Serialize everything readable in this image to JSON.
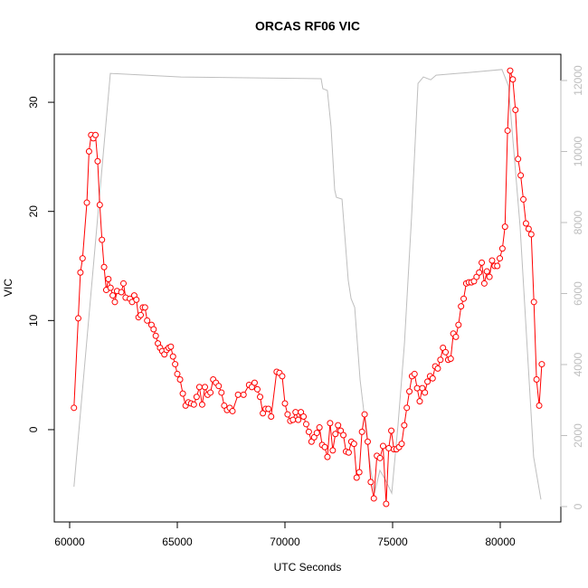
{
  "chart_data": {
    "type": "line",
    "title": "ORCAS RF06 VIC",
    "xlabel": "UTC Seconds",
    "ylabel": "VIC",
    "xlim": [
      59286,
      82815
    ],
    "xticks": [
      60000,
      65000,
      70000,
      75000,
      80000
    ],
    "ylim": [
      -8.46,
      34.4
    ],
    "yticks": [
      0,
      10,
      20,
      30
    ],
    "y2lim": [
      -433,
      12739
    ],
    "y2ticks": [
      0,
      2000,
      4000,
      6000,
      8000,
      10000,
      12000
    ],
    "series": [
      {
        "color": "#ff0000",
        "markers": true,
        "x": [
          60200,
          60400,
          60500,
          60600,
          60800,
          60900,
          61000,
          61100,
          61200,
          61300,
          61400,
          61500,
          61600,
          61700,
          61800,
          61900,
          62000,
          62100,
          62200,
          62400,
          62500,
          62600,
          62800,
          62900,
          63000,
          63100,
          63200,
          63300,
          63400,
          63500,
          63600,
          63800,
          63900,
          64000,
          64100,
          64200,
          64300,
          64400,
          64500,
          64600,
          64700,
          64800,
          64900,
          65000,
          65128,
          65256,
          65385,
          65513,
          65641,
          65769,
          65897,
          66026,
          66154,
          66282,
          66410,
          66538,
          66667,
          66795,
          66923,
          67051,
          67179,
          67308,
          67436,
          67564,
          67821,
          68077,
          68333,
          68462,
          68590,
          68718,
          68846,
          68974,
          69103,
          69231,
          69359,
          69615,
          69744,
          69872,
          70000,
          70123,
          70247,
          70370,
          70493,
          70617,
          70740,
          70863,
          70987,
          71110,
          71233,
          71357,
          71480,
          71603,
          71727,
          71850,
          71973,
          72097,
          72220,
          72343,
          72467,
          72590,
          72713,
          72837,
          72960,
          73083,
          73207,
          73330,
          73453,
          73577,
          73700,
          73843,
          73986,
          74129,
          74271,
          74414,
          74557,
          74700,
          74820,
          74940,
          75060,
          75180,
          75300,
          75420,
          75540,
          75660,
          75780,
          75900,
          76020,
          76140,
          76260,
          76380,
          76500,
          76620,
          76740,
          76860,
          76980,
          77100,
          77220,
          77340,
          77460,
          77580,
          77700,
          77820,
          77940,
          78060,
          78180,
          78300,
          78420,
          78540,
          78660,
          78780,
          78900,
          79020,
          79140,
          79260,
          79380,
          79500,
          79620,
          79740,
          79860,
          79980,
          80100,
          80220,
          80340,
          80460,
          80583,
          80705,
          80828,
          80950,
          81073,
          81195,
          81318,
          81440,
          81563,
          81685,
          81808,
          81930
        ],
        "values": [
          2.0,
          10.2,
          14.4,
          15.7,
          20.8,
          25.5,
          27.0,
          26.7,
          27.0,
          24.6,
          20.6,
          17.4,
          14.9,
          12.8,
          13.8,
          13.0,
          12.3,
          11.7,
          12.7,
          12.6,
          13.4,
          12.1,
          12.0,
          11.7,
          12.3,
          11.9,
          10.3,
          10.5,
          11.2,
          11.2,
          10.0,
          9.6,
          9.2,
          8.6,
          7.9,
          7.5,
          7.2,
          6.9,
          7.3,
          7.5,
          7.6,
          6.7,
          6.0,
          5.1,
          4.6,
          3.3,
          2.2,
          2.5,
          2.4,
          2.3,
          3.0,
          3.9,
          2.3,
          3.9,
          3.2,
          3.4,
          4.6,
          4.3,
          4.0,
          3.4,
          2.2,
          1.8,
          2.0,
          1.7,
          3.2,
          3.2,
          4.1,
          3.9,
          4.3,
          3.7,
          3.0,
          1.5,
          1.9,
          1.9,
          1.2,
          5.3,
          5.2,
          4.9,
          2.4,
          1.4,
          0.8,
          0.9,
          1.6,
          0.9,
          1.6,
          1.2,
          0.5,
          -0.2,
          -1.1,
          -0.7,
          -0.3,
          0.2,
          -1.4,
          -1.6,
          -2.5,
          0.6,
          -1.9,
          -0.4,
          0.4,
          -0.1,
          -0.5,
          -2.0,
          -2.1,
          -1.1,
          -1.3,
          -4.4,
          -3.9,
          -0.2,
          1.4,
          -1.1,
          -4.8,
          -6.3,
          -2.4,
          -2.6,
          -1.5,
          -6.8,
          -1.7,
          -0.1,
          -1.8,
          -1.8,
          -1.6,
          -1.3,
          0.4,
          2.0,
          3.5,
          4.9,
          5.1,
          3.8,
          2.6,
          3.8,
          3.4,
          4.4,
          4.9,
          4.7,
          5.8,
          5.6,
          6.4,
          7.5,
          7.1,
          6.4,
          6.5,
          8.8,
          8.5,
          9.6,
          11.3,
          12.0,
          13.4,
          13.5,
          13.5,
          13.6,
          14.0,
          14.4,
          15.3,
          13.4,
          14.5,
          14.0,
          15.5,
          15.0,
          15.0,
          15.7,
          16.6,
          18.6,
          27.4,
          32.9,
          32.1,
          29.3,
          24.8,
          23.3,
          21.1,
          18.9,
          18.4,
          17.9,
          11.7,
          4.6,
          2.2,
          6.0
        ]
      },
      {
        "color": "#bebebe",
        "axis": "y2",
        "markers": false,
        "x": [
          60200,
          61890,
          65170,
          71680,
          71760,
          71970,
          72140,
          72310,
          72390,
          72650,
          72940,
          73070,
          73240,
          73490,
          73740,
          73990,
          74160,
          74410,
          74660,
          74960,
          75250,
          75550,
          75880,
          76180,
          76430,
          76770,
          77020,
          78620,
          80080,
          80380,
          80920,
          81550,
          81890
        ],
        "values": [
          560,
          12200,
          12100,
          12050,
          11770,
          11720,
          10700,
          8920,
          8710,
          8660,
          6370,
          5860,
          5610,
          3570,
          2290,
          1020,
          380,
          1020,
          760,
          380,
          2290,
          4590,
          8150,
          11920,
          12100,
          12020,
          12150,
          12230,
          12310,
          11850,
          7900,
          1400,
          200
        ]
      }
    ]
  }
}
